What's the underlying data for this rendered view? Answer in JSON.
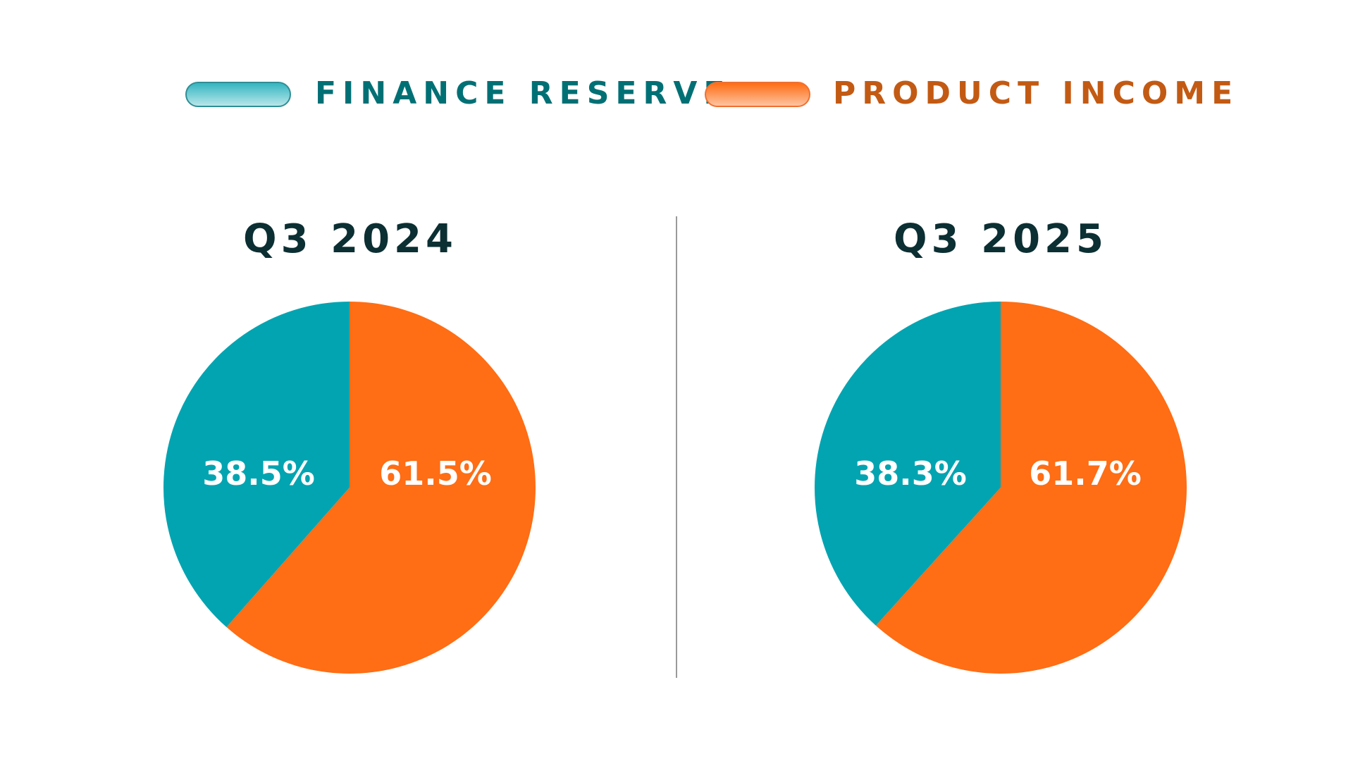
{
  "chart_data": [
    {
      "type": "pie",
      "title": "Q3 2024",
      "categories": [
        "FINANCE RESERVE",
        "PRODUCT INCOME"
      ],
      "values": [
        38.5,
        61.5
      ],
      "labels": [
        "38.5%",
        "61.5%"
      ]
    },
    {
      "type": "pie",
      "title": "Q3 2025",
      "categories": [
        "FINANCE RESERVE",
        "PRODUCT INCOME"
      ],
      "values": [
        38.3,
        61.7
      ],
      "labels": [
        "38.3%",
        "61.7%"
      ]
    }
  ],
  "legend": {
    "placement": "top",
    "items": [
      {
        "label": "FINANCE RESERVE",
        "color": "#03a4b1"
      },
      {
        "label": "PRODUCT INCOME",
        "color": "#ff6d14"
      }
    ]
  },
  "colors": {
    "finance_reserve": "#03a4b1",
    "product_income": "#ff6d14",
    "title": "#0b2f33"
  }
}
